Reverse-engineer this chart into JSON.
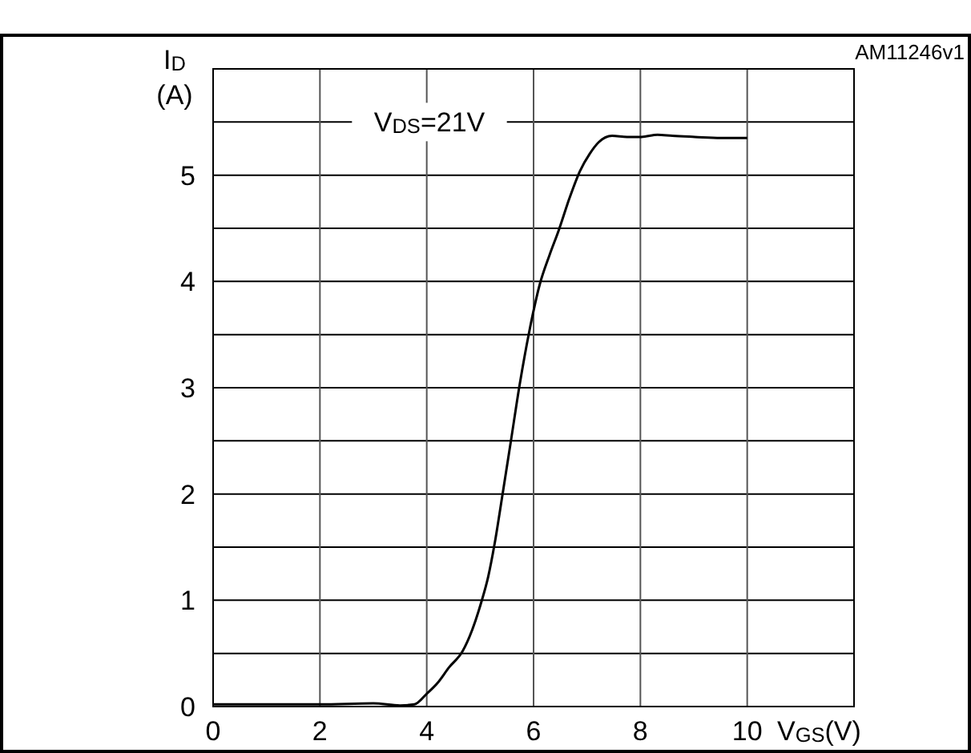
{
  "chart_data": {
    "type": "line",
    "xlabel": "V$_{GS}$(V)",
    "ylabel": "I$_{D}$ (A)",
    "annotations": [
      "V$_{DS}$=21V",
      "AM11246v1"
    ],
    "xlim": [
      0,
      12
    ],
    "xticks": [
      0,
      2,
      4,
      6,
      8,
      10,
      {
        "value": 12,
        "label": null
      }
    ],
    "ylim": [
      0,
      6
    ],
    "yticks": [
      0,
      {
        "value": 0.5,
        "label": null
      },
      1,
      {
        "value": 1.5,
        "label": null
      },
      2,
      {
        "value": 2.5,
        "label": null
      },
      3,
      {
        "value": 3.5,
        "label": null
      },
      4,
      {
        "value": 4.5,
        "label": null
      },
      5,
      {
        "value": 5.5,
        "label": null
      },
      {
        "value": 6,
        "label": null
      }
    ],
    "grid": true,
    "marker": "none",
    "line_style": "solid",
    "series": [
      {
        "color": "#000000",
        "x": [
          0,
          1,
          2,
          3,
          3.5,
          3.77,
          4,
          4.2,
          4.42,
          4.67,
          4.85,
          5.02,
          5.15,
          5.27,
          5.42,
          5.57,
          5.74,
          5.92,
          6.12,
          6.3,
          6.47,
          6.67,
          6.87,
          7.05,
          7.22,
          7.47,
          7.75,
          8.02,
          8.32,
          8.6,
          9.02,
          9.5,
          10
        ],
        "values": [
          0.02,
          0.02,
          0.02,
          0.03,
          0.01,
          0.02,
          0.12,
          0.22,
          0.37,
          0.52,
          0.72,
          0.98,
          1.22,
          1.53,
          2.0,
          2.48,
          3.03,
          3.53,
          3.98,
          4.25,
          4.48,
          4.78,
          5.04,
          5.2,
          5.31,
          5.37,
          5.36,
          5.36,
          5.38,
          5.37,
          5.36,
          5.35,
          5.35
        ]
      }
    ]
  }
}
